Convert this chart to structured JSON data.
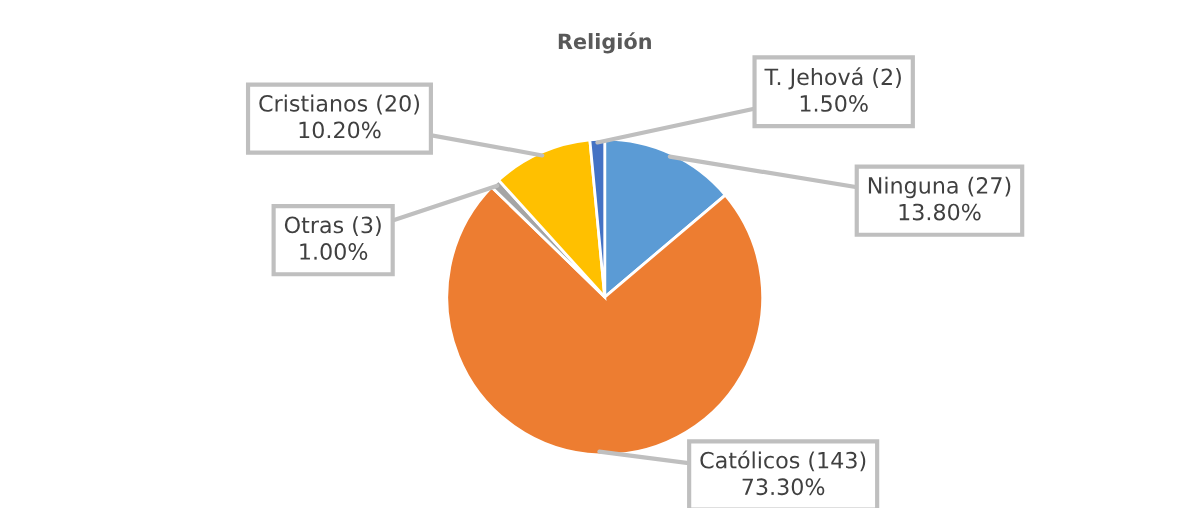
{
  "chart_data": {
    "type": "pie",
    "title": "Religión",
    "categories": [
      "Ninguna (27)",
      "Católicos (143)",
      "Otras (3)",
      "Cristianos (20)",
      "T. Jehová (2)"
    ],
    "values": [
      13.8,
      73.3,
      1.0,
      10.2,
      1.5
    ],
    "value_labels": [
      "13.80%",
      "73.30%",
      "1.00%",
      "10.20%",
      "1.50%"
    ],
    "colors": [
      "#5b9bd5",
      "#ed7d31",
      "#a5a5a5",
      "#ffc000",
      "#4472c4"
    ],
    "legend": false
  }
}
